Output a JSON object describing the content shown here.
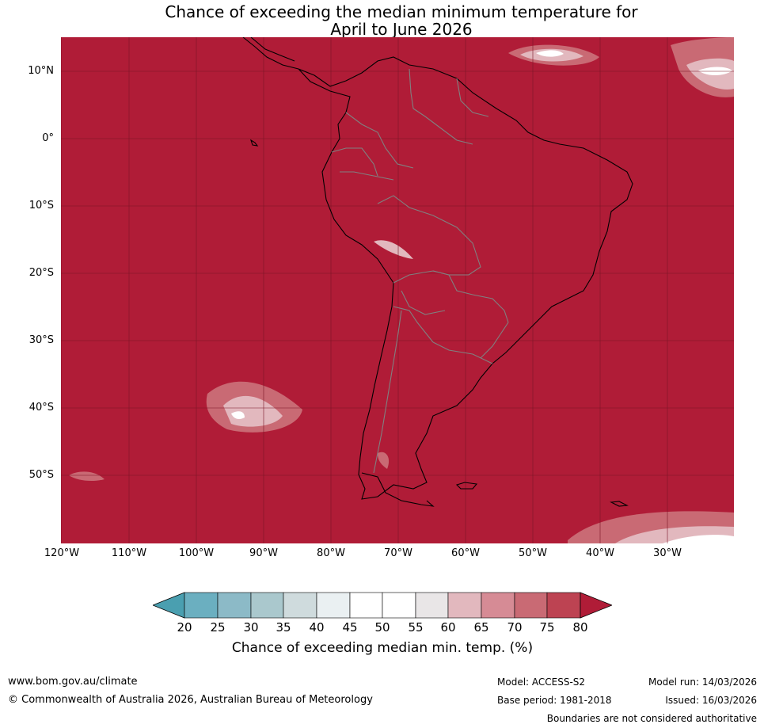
{
  "title_line1": "Chance of exceeding the median minimum temperature for",
  "title_line2": "April to June 2026",
  "map": {
    "lat_labels": [
      "10°N",
      "0°",
      "10°S",
      "20°S",
      "30°S",
      "40°S",
      "50°S"
    ],
    "lon_labels": [
      "120°W",
      "110°W",
      "100°W",
      "90°W",
      "80°W",
      "70°W",
      "60°W",
      "50°W",
      "40°W",
      "30°W"
    ],
    "colors": {
      "background": "#b01c37",
      "land_border": "#000000",
      "country_border": "#808080"
    }
  },
  "colorbar": {
    "ticks": [
      "20",
      "25",
      "30",
      "35",
      "40",
      "45",
      "50",
      "55",
      "60",
      "65",
      "70",
      "75",
      "80"
    ],
    "colors": [
      "#4a9fb0",
      "#6bafc0",
      "#8cbac7",
      "#aac8cd",
      "#cfdbdd",
      "#eaf0f2",
      "#ffffff",
      "#ffffff",
      "#e9e6e7",
      "#e2b8be",
      "#d68b95",
      "#c96a74",
      "#bd4352",
      "#b01c37"
    ],
    "label": "Chance of exceeding median min. temp. (%)"
  },
  "footer": {
    "website": "www.bom.gov.au/climate",
    "copyright": "© Commonwealth of Australia 2026, Australian Bureau of Meteorology",
    "model": "Model: ACCESS-S2",
    "base_period": "Base period: 1981-2018",
    "model_run": "Model run: 14/03/2026",
    "issued": "Issued: 16/03/2026",
    "disclaimer": "Boundaries are not considered authoritative"
  }
}
